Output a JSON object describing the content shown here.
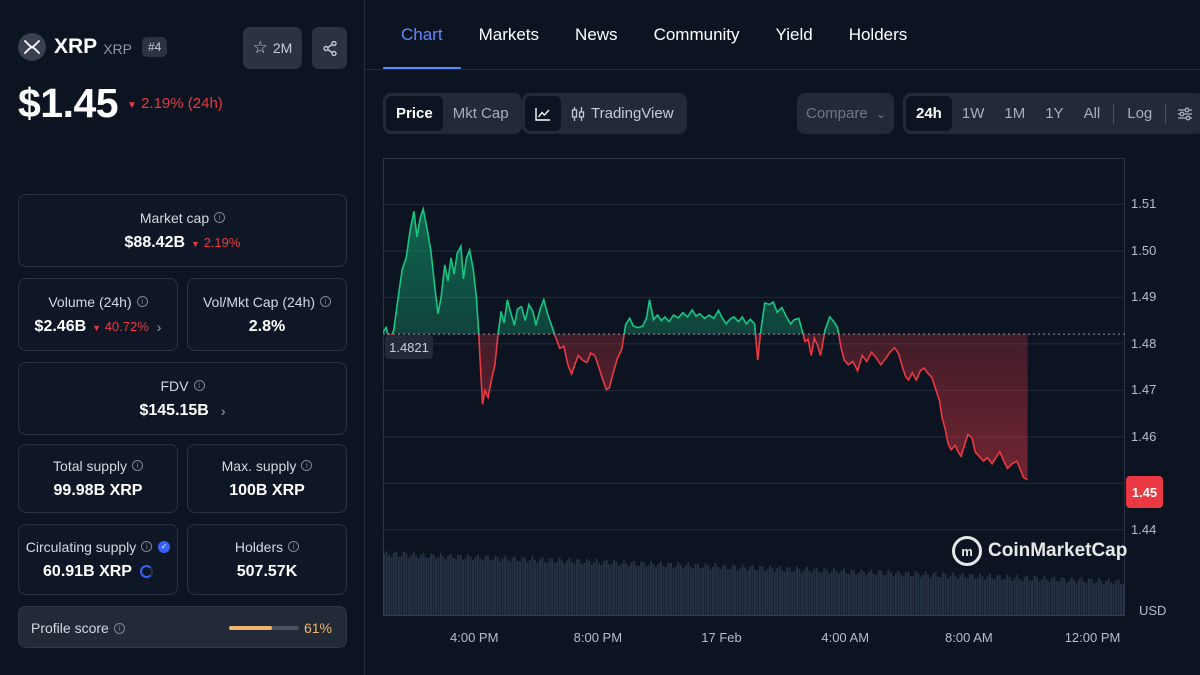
{
  "coin": {
    "name": "XRP",
    "symbol": "XRP",
    "rank": "#4",
    "watchlist_count": "2M",
    "price": "$1.45",
    "price_change": "2.19% (24h)"
  },
  "stats": {
    "market_cap": {
      "label": "Market cap",
      "value": "$88.42B",
      "change": "2.19%"
    },
    "volume": {
      "label": "Volume (24h)",
      "value": "$2.46B",
      "change": "40.72%"
    },
    "vol_mkt_cap": {
      "label": "Vol/Mkt Cap (24h)",
      "value": "2.8%"
    },
    "fdv": {
      "label": "FDV",
      "value": "$145.15B"
    },
    "total_supply": {
      "label": "Total supply",
      "value": "99.98B XRP"
    },
    "max_supply": {
      "label": "Max. supply",
      "value": "100B XRP"
    },
    "circulating_supply": {
      "label": "Circulating supply",
      "value": "60.91B XRP"
    },
    "holders": {
      "label": "Holders",
      "value": "507.57K"
    }
  },
  "profile_score": {
    "label": "Profile score",
    "value": "61%",
    "fraction": 0.61
  },
  "tabs": [
    "Chart",
    "Markets",
    "News",
    "Community",
    "Yield",
    "Holders"
  ],
  "chart_controls": {
    "price_toggle": [
      "Price",
      "Mkt Cap"
    ],
    "tradingview_label": "TradingView",
    "compare_label": "Compare",
    "ranges": [
      "24h",
      "1W",
      "1M",
      "1Y",
      "All"
    ],
    "log_label": "Log"
  },
  "watermark": "CoinMarketCap",
  "colors": {
    "up": "#16c784",
    "down": "#ea3943",
    "accent": "#6188ff"
  },
  "chart_data": {
    "type": "area",
    "currency": "USD",
    "baseline": 1.4821,
    "baseline_label": "1.4821",
    "last_price_label": "1.45",
    "ylim": [
      1.435,
      1.52
    ],
    "yticks": [
      1.44,
      1.45,
      1.46,
      1.47,
      1.48,
      1.49,
      1.5,
      1.51
    ],
    "ytick_labels": [
      "1.44",
      "1.46",
      "1.47",
      "1.48",
      "1.49",
      "1.50",
      "1.51"
    ],
    "xtick_labels": [
      "4:00 PM",
      "8:00 PM",
      "17 Feb",
      "4:00 AM",
      "8:00 AM",
      "12:00 PM"
    ],
    "xticks_hours": [
      2.95,
      6.95,
      10.95,
      14.95,
      18.95,
      22.95
    ],
    "x_range_hours": [
      0,
      24
    ],
    "series": [
      {
        "points": [
          [
            0.0,
            1.4825
          ],
          [
            0.1,
            1.4835
          ],
          [
            0.22,
            1.4808
          ],
          [
            0.35,
            1.483
          ],
          [
            0.5,
            1.4905
          ],
          [
            0.62,
            1.496
          ],
          [
            0.75,
            1.4985
          ],
          [
            0.88,
            1.5045
          ],
          [
            1.0,
            1.5085
          ],
          [
            1.1,
            1.503
          ],
          [
            1.2,
            1.507
          ],
          [
            1.3,
            1.509
          ],
          [
            1.42,
            1.505
          ],
          [
            1.55,
            1.5
          ],
          [
            1.68,
            1.492
          ],
          [
            1.78,
            1.4865
          ],
          [
            1.88,
            1.49
          ],
          [
            2.0,
            1.497
          ],
          [
            2.1,
            1.4935
          ],
          [
            2.2,
            1.4985
          ],
          [
            2.3,
            1.495
          ],
          [
            2.4,
            1.4995
          ],
          [
            2.52,
            1.501
          ],
          [
            2.6,
            1.494
          ],
          [
            2.7,
            1.4985
          ],
          [
            2.8,
            1.5002
          ],
          [
            2.92,
            1.496
          ],
          [
            3.02,
            1.49
          ],
          [
            3.1,
            1.482
          ],
          [
            3.16,
            1.474
          ],
          [
            3.22,
            1.467
          ],
          [
            3.3,
            1.47
          ],
          [
            3.4,
            1.4685
          ],
          [
            3.5,
            1.472
          ],
          [
            3.62,
            1.4755
          ],
          [
            3.72,
            1.482
          ],
          [
            3.82,
            1.487
          ],
          [
            3.92,
            1.4845
          ],
          [
            4.02,
            1.4895
          ],
          [
            4.12,
            1.487
          ],
          [
            4.25,
            1.484
          ],
          [
            4.35,
            1.4875
          ],
          [
            4.48,
            1.488
          ],
          [
            4.6,
            1.485
          ],
          [
            4.72,
            1.4885
          ],
          [
            4.85,
            1.487
          ],
          [
            4.95,
            1.484
          ],
          [
            5.08,
            1.4875
          ],
          [
            5.2,
            1.4895
          ],
          [
            5.32,
            1.4865
          ],
          [
            5.45,
            1.484
          ],
          [
            5.58,
            1.4815
          ],
          [
            5.72,
            1.479
          ],
          [
            5.85,
            1.4795
          ],
          [
            5.98,
            1.4755
          ],
          [
            6.1,
            1.4735
          ],
          [
            6.2,
            1.4755
          ],
          [
            6.32,
            1.4775
          ],
          [
            6.45,
            1.4765
          ],
          [
            6.6,
            1.476
          ],
          [
            6.72,
            1.478
          ],
          [
            6.85,
            1.4775
          ],
          [
            6.98,
            1.475
          ],
          [
            7.1,
            1.4725
          ],
          [
            7.22,
            1.4702
          ],
          [
            7.32,
            1.4705
          ],
          [
            7.45,
            1.4738
          ],
          [
            7.58,
            1.4768
          ],
          [
            7.72,
            1.4788
          ],
          [
            7.85,
            1.4842
          ],
          [
            7.98,
            1.4855
          ],
          [
            8.1,
            1.4838
          ],
          [
            8.25,
            1.4835
          ],
          [
            8.4,
            1.4838
          ],
          [
            8.52,
            1.4855
          ],
          [
            8.62,
            1.4895
          ],
          [
            8.75,
            1.4852
          ],
          [
            8.88,
            1.4862
          ],
          [
            9.0,
            1.485
          ],
          [
            9.12,
            1.4858
          ],
          [
            9.25,
            1.4848
          ],
          [
            9.4,
            1.4862
          ],
          [
            9.55,
            1.4856
          ],
          [
            9.7,
            1.4867
          ],
          [
            9.85,
            1.4858
          ],
          [
            10.0,
            1.4873
          ],
          [
            10.12,
            1.486
          ],
          [
            10.25,
            1.4865
          ],
          [
            10.4,
            1.4855
          ],
          [
            10.55,
            1.4862
          ],
          [
            10.7,
            1.4855
          ],
          [
            10.85,
            1.4872
          ],
          [
            10.98,
            1.4855
          ],
          [
            11.1,
            1.4843
          ],
          [
            11.22,
            1.4853
          ],
          [
            11.35,
            1.4858
          ],
          [
            11.5,
            1.4848
          ],
          [
            11.62,
            1.4858
          ],
          [
            11.75,
            1.4843
          ],
          [
            11.88,
            1.4853
          ],
          [
            12.02,
            1.4843
          ],
          [
            12.12,
            1.4765
          ],
          [
            12.22,
            1.4828
          ],
          [
            12.35,
            1.4888
          ],
          [
            12.5,
            1.4885
          ],
          [
            12.62,
            1.489
          ],
          [
            12.75,
            1.4868
          ],
          [
            12.9,
            1.4878
          ],
          [
            13.05,
            1.4858
          ],
          [
            13.18,
            1.4843
          ],
          [
            13.3,
            1.4852
          ],
          [
            13.45,
            1.4855
          ],
          [
            13.55,
            1.483
          ],
          [
            13.65,
            1.4805
          ],
          [
            13.75,
            1.481
          ],
          [
            13.85,
            1.4775
          ],
          [
            13.95,
            1.4812
          ],
          [
            14.05,
            1.4798
          ],
          [
            14.15,
            1.4775
          ],
          [
            14.3,
            1.483
          ],
          [
            14.45,
            1.4858
          ],
          [
            14.58,
            1.4848
          ],
          [
            14.7,
            1.4835
          ],
          [
            14.82,
            1.479
          ],
          [
            14.92,
            1.4765
          ],
          [
            15.05,
            1.4755
          ],
          [
            15.2,
            1.4762
          ],
          [
            15.35,
            1.4742
          ],
          [
            15.5,
            1.4775
          ],
          [
            15.65,
            1.4762
          ],
          [
            15.8,
            1.4782
          ],
          [
            15.95,
            1.477
          ],
          [
            16.1,
            1.4755
          ],
          [
            16.25,
            1.4768
          ],
          [
            16.4,
            1.4782
          ],
          [
            16.55,
            1.4792
          ],
          [
            16.68,
            1.4778
          ],
          [
            16.78,
            1.4755
          ],
          [
            16.9,
            1.473
          ],
          [
            17.0,
            1.4722
          ],
          [
            17.12,
            1.4738
          ],
          [
            17.25,
            1.4722
          ],
          [
            17.38,
            1.4742
          ],
          [
            17.5,
            1.4748
          ],
          [
            17.62,
            1.4737
          ],
          [
            17.75,
            1.4728
          ],
          [
            17.88,
            1.4702
          ],
          [
            18.0,
            1.4678
          ],
          [
            18.08,
            1.4642
          ],
          [
            18.18,
            1.4618
          ],
          [
            18.28,
            1.4585
          ],
          [
            18.38,
            1.4572
          ],
          [
            18.5,
            1.4582
          ],
          [
            18.6,
            1.4568
          ],
          [
            18.7,
            1.4558
          ],
          [
            18.82,
            1.4585
          ],
          [
            18.92,
            1.4605
          ],
          [
            19.05,
            1.4598
          ],
          [
            19.15,
            1.4568
          ],
          [
            19.28,
            1.4558
          ],
          [
            19.42,
            1.4548
          ],
          [
            19.55,
            1.4555
          ],
          [
            19.7,
            1.4542
          ],
          [
            19.82,
            1.4555
          ],
          [
            19.95,
            1.4568
          ],
          [
            20.08,
            1.4548
          ],
          [
            20.2,
            1.4532
          ],
          [
            20.35,
            1.4542
          ],
          [
            20.5,
            1.4548
          ],
          [
            20.6,
            1.4532
          ],
          [
            20.72,
            1.4512
          ],
          [
            20.85,
            1.4508
          ]
        ]
      }
    ]
  }
}
